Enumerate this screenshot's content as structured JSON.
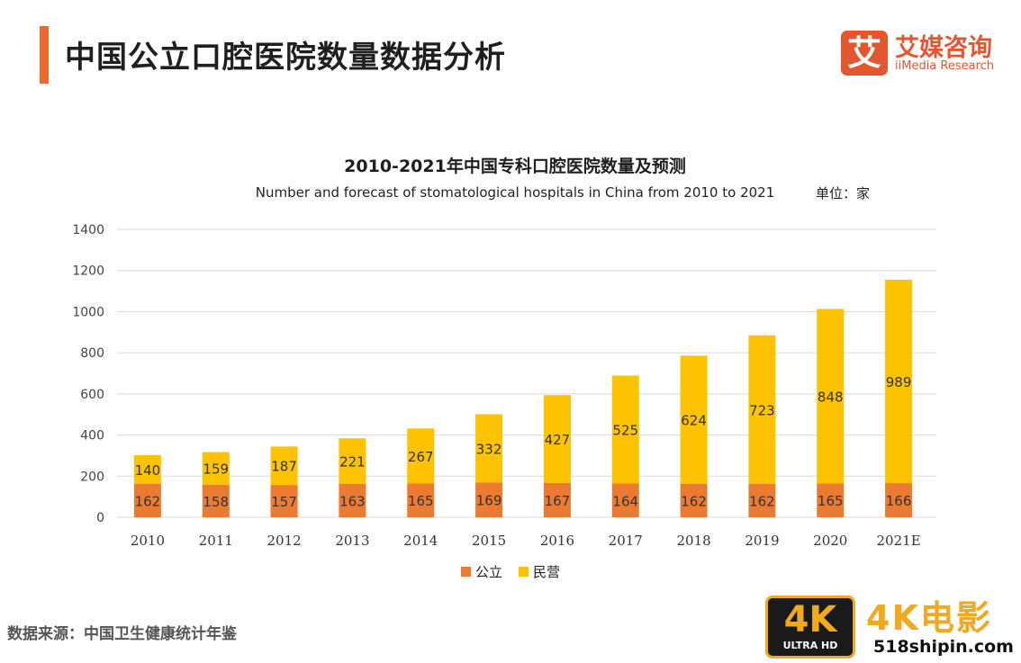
{
  "header": {
    "title": "中国公立口腔医院数量数据分析"
  },
  "logo": {
    "mark": "艾",
    "name_cn": "艾媒咨询",
    "name_en": "iiMedia Research"
  },
  "unit_label": "单位：家",
  "source": "数据来源：中国卫生健康统计年鉴",
  "watermark": {
    "badge_big": "4K",
    "badge_small": "ULTRA HD",
    "text": "4K电影",
    "url": "518shipin.com"
  },
  "colors": {
    "accent": "#ec6a2c",
    "public": "#ec7a30",
    "private": "#fdc200",
    "grid": "#d9d9d9"
  },
  "chart_data": {
    "type": "bar",
    "stacked": true,
    "title": "2010-2021年中国专科口腔医院数量及预测",
    "subtitle": "Number and forecast of stomatological hospitals in China from 2010 to 2021",
    "categories": [
      "2010",
      "2011",
      "2012",
      "2013",
      "2014",
      "2015",
      "2016",
      "2017",
      "2018",
      "2019",
      "2020",
      "2021E"
    ],
    "series": [
      {
        "name": "公立",
        "color": "#ec7a30",
        "values": [
          162,
          158,
          157,
          163,
          165,
          169,
          167,
          164,
          162,
          162,
          165,
          166
        ]
      },
      {
        "name": "民营",
        "color": "#fdc200",
        "values": [
          140,
          159,
          187,
          221,
          267,
          332,
          427,
          525,
          624,
          723,
          848,
          989
        ]
      }
    ],
    "ylim": [
      0,
      1400
    ],
    "yticks": [
      0,
      200,
      400,
      600,
      800,
      1000,
      1200,
      1400
    ],
    "grid": true,
    "legend_position": "bottom-center"
  }
}
